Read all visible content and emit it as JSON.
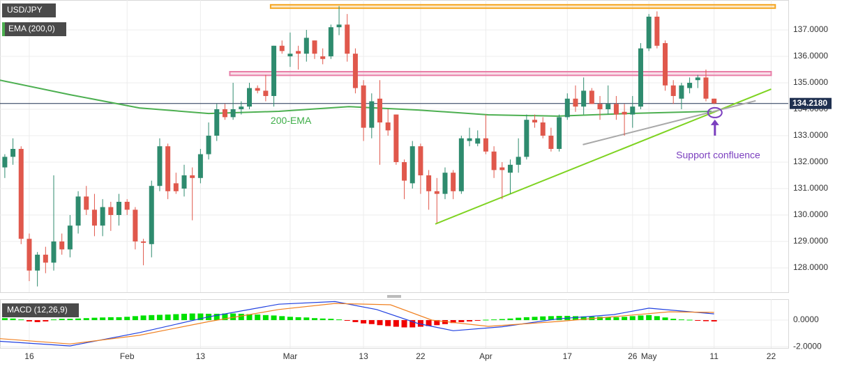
{
  "chart_data": [
    {
      "type": "candlestick",
      "title": "USD/JPY",
      "x": [
        0,
        1,
        2,
        3,
        4,
        5,
        6,
        7,
        8,
        9,
        10,
        11,
        12,
        13,
        14,
        15,
        16,
        17,
        18,
        19,
        20,
        21,
        22,
        23,
        24,
        25,
        26,
        27,
        28,
        29,
        30,
        31,
        32,
        33,
        34,
        35,
        36,
        37,
        38,
        39,
        40,
        41,
        42,
        43,
        44,
        45,
        46,
        47,
        48,
        49,
        50,
        51,
        52,
        53,
        54,
        55,
        56,
        57,
        58,
        59,
        60,
        61,
        62,
        63,
        64,
        65,
        66,
        67,
        68,
        69,
        70,
        71,
        72,
        73,
        74,
        75,
        76,
        77,
        78,
        79,
        80,
        81,
        82,
        83,
        84,
        85,
        86,
        87
      ],
      "open": [
        131.8,
        132.2,
        132.5,
        129.1,
        127.9,
        128.5,
        128.2,
        129.0,
        128.7,
        129.6,
        130.7,
        130.2,
        129.6,
        130.3,
        130.0,
        130.5,
        130.2,
        129.0,
        128.9,
        131.1,
        132.6,
        131.2,
        131.0,
        131.5,
        131.4,
        132.3,
        133.0,
        134.0,
        133.7,
        134.0,
        134.1,
        134.8,
        134.7,
        134.5,
        136.4,
        136.0,
        136.2,
        136.1,
        136.6,
        136.0,
        136.0,
        137.1,
        137.2,
        136.1,
        134.9,
        133.3,
        134.4,
        133.5,
        133.8,
        132.0,
        131.2,
        132.6,
        131.5,
        130.9,
        130.8,
        131.6,
        130.9,
        132.8,
        132.7,
        132.9,
        132.4,
        131.8,
        131.6,
        131.9,
        132.2,
        133.6,
        133.5,
        133.0,
        132.5,
        133.7,
        134.4,
        134.1,
        134.7,
        134.2,
        134.0,
        134.2,
        133.9,
        133.8,
        134.1,
        136.3,
        137.5,
        136.5,
        134.9,
        134.4,
        134.8,
        135.1,
        135.2,
        134.4
      ],
      "high": [
        132.3,
        132.9,
        132.6,
        129.3,
        128.6,
        128.8,
        131.5,
        129.3,
        130.0,
        130.9,
        131.1,
        130.8,
        130.6,
        130.5,
        130.8,
        130.6,
        130.3,
        129.1,
        131.3,
        132.9,
        132.7,
        131.6,
        131.9,
        131.8,
        132.5,
        133.5,
        134.2,
        134.2,
        135.0,
        134.3,
        135.0,
        134.9,
        135.3,
        136.4,
        136.6,
        136.9,
        136.4,
        137.0,
        136.6,
        136.3,
        137.2,
        137.9,
        137.6,
        136.3,
        135.1,
        134.6,
        135.1,
        134.0,
        133.8,
        132.1,
        132.8,
        132.7,
        131.7,
        131.4,
        131.8,
        131.7,
        133.0,
        133.3,
        133.2,
        133.8,
        132.6,
        132.0,
        132.1,
        132.9,
        133.8,
        133.8,
        133.7,
        133.3,
        133.8,
        134.6,
        134.9,
        135.2,
        134.8,
        134.5,
        134.9,
        134.5,
        134.2,
        134.5,
        136.5,
        137.6,
        137.7,
        136.6,
        135.1,
        135.0,
        135.2,
        135.3,
        135.5,
        134.4
      ],
      "low": [
        131.4,
        131.9,
        128.9,
        127.5,
        127.3,
        127.8,
        127.9,
        128.5,
        128.4,
        129.3,
        130.0,
        129.2,
        129.2,
        129.4,
        129.6,
        130.0,
        128.7,
        128.1,
        128.4,
        130.9,
        130.6,
        130.8,
        130.7,
        129.8,
        131.2,
        132.1,
        132.8,
        133.6,
        133.6,
        133.8,
        134.0,
        134.6,
        134.3,
        134.1,
        136.1,
        135.6,
        135.5,
        135.8,
        135.9,
        135.7,
        135.9,
        136.8,
        135.8,
        134.6,
        132.8,
        132.9,
        131.9,
        133.0,
        131.9,
        130.6,
        131.0,
        130.8,
        130.2,
        129.7,
        130.6,
        130.6,
        130.8,
        132.6,
        132.6,
        132.3,
        131.4,
        130.6,
        130.8,
        131.6,
        132.1,
        133.3,
        132.9,
        132.4,
        132.4,
        133.6,
        133.9,
        133.8,
        134.2,
        133.6,
        133.8,
        133.6,
        133.0,
        133.3,
        134.0,
        136.2,
        136.3,
        134.7,
        134.2,
        134.0,
        134.6,
        134.8,
        134.3,
        134.2
      ],
      "close": [
        132.2,
        132.5,
        129.1,
        127.9,
        128.5,
        128.2,
        129.0,
        128.7,
        129.6,
        130.7,
        130.2,
        129.6,
        130.3,
        130.0,
        130.5,
        130.2,
        129.0,
        128.95,
        131.1,
        132.6,
        130.9,
        130.9,
        131.5,
        131.4,
        132.3,
        133.0,
        134.0,
        133.7,
        134.0,
        134.1,
        134.8,
        134.7,
        134.5,
        136.4,
        136.2,
        136.1,
        136.1,
        136.7,
        136.1,
        135.9,
        137.1,
        137.2,
        136.1,
        134.8,
        133.3,
        134.3,
        133.5,
        133.2,
        132.0,
        131.3,
        132.6,
        131.5,
        130.9,
        130.8,
        131.6,
        130.9,
        132.9,
        132.9,
        132.9,
        132.4,
        131.7,
        131.7,
        131.9,
        132.2,
        133.6,
        133.5,
        133.0,
        132.5,
        133.7,
        134.4,
        134.1,
        134.7,
        134.2,
        134.0,
        134.2,
        133.8,
        133.8,
        134.1,
        136.3,
        137.5,
        136.4,
        134.9,
        134.5,
        134.9,
        135.0,
        135.2,
        134.4,
        134.22
      ],
      "up_color": "#2e8b6e",
      "down_color": "#e0584c",
      "series": [
        {
          "name": "EMA (200,0)",
          "color": "#4caf50",
          "x": [
            -0.6,
            8,
            16.5,
            25,
            33.6,
            42.2,
            50.7,
            59.3,
            67.8,
            76.4,
            86.7
          ],
          "values": [
            135.1,
            134.55,
            134.05,
            133.84,
            133.92,
            134.1,
            133.97,
            133.79,
            133.74,
            133.84,
            133.92
          ]
        }
      ],
      "bands": [
        {
          "x": [
            32.6,
            94.5
          ],
          "y": [
            137.82,
            137.95
          ],
          "color": "#f5a623"
        },
        {
          "x": [
            27.6,
            94
          ],
          "y": [
            135.28,
            135.42
          ],
          "color": "#e87fa8"
        }
      ],
      "lines": [
        {
          "x": [
            52.8,
            94
          ],
          "y": [
            129.66,
            134.76
          ],
          "color": "#7ed321"
        },
        {
          "x": [
            70.9,
            92.1
          ],
          "y": [
            132.66,
            134.32
          ],
          "color": "#a8a8a8"
        }
      ],
      "marker": {
        "x": 87.1,
        "y": 133.87,
        "color": "#7b3fbf"
      },
      "annotations": [
        {
          "text": "200-EMA",
          "x": 35.1,
          "y": 133.55,
          "color": "#3fae49"
        },
        {
          "text": "Support confluence",
          "x": 87.5,
          "y": 132.24,
          "color": "#7b3fbf"
        }
      ],
      "current_price": {
        "value": 134.218,
        "label": "134.2180"
      },
      "xlim": [
        -0.59,
        96.1
      ],
      "ylim": [
        127.08,
        138.13
      ],
      "yticks": [
        {
          "value": 128,
          "label": "128.0000"
        },
        {
          "value": 129,
          "label": "129.0000"
        },
        {
          "value": 130,
          "label": "130.0000"
        },
        {
          "value": 131,
          "label": "131.0000"
        },
        {
          "value": 132,
          "label": "132.0000"
        },
        {
          "value": 133,
          "label": "133.0000"
        },
        {
          "value": 134,
          "label": "134.0000"
        },
        {
          "value": 135,
          "label": "135.0000"
        },
        {
          "value": 136,
          "label": "136.0000"
        },
        {
          "value": 137,
          "label": "137.0000"
        }
      ],
      "grid": true
    },
    {
      "type": "macd",
      "title": "MACD (12,26,9)",
      "histogram": [
        0.15,
        0.12,
        0.05,
        -0.1,
        -0.15,
        -0.1,
        0.05,
        0.1,
        0.1,
        0.12,
        0.15,
        0.18,
        0.2,
        0.22,
        0.22,
        0.25,
        0.3,
        0.35,
        0.38,
        0.4,
        0.42,
        0.45,
        0.48,
        0.5,
        0.5,
        0.48,
        0.48,
        0.5,
        0.5,
        0.48,
        0.45,
        0.42,
        0.38,
        0.35,
        0.3,
        0.25,
        0.22,
        0.2,
        0.15,
        0.12,
        0.1,
        0.05,
        -0.05,
        -0.15,
        -0.25,
        -0.3,
        -0.38,
        -0.45,
        -0.5,
        -0.55,
        -0.55,
        -0.5,
        -0.45,
        -0.38,
        -0.3,
        -0.22,
        -0.15,
        -0.1,
        -0.05,
        0.03,
        0.05,
        0.08,
        0.12,
        0.18,
        0.22,
        0.25,
        0.28,
        0.3,
        0.32,
        0.32,
        0.3,
        0.28,
        0.26,
        0.25,
        0.24,
        0.22,
        0.25,
        0.3,
        0.35,
        0.38,
        0.3,
        0.2,
        0.1,
        0.05,
        0.03,
        -0.02,
        -0.08,
        -0.1
      ],
      "up_color": "#00e000",
      "down_color": "#f00000",
      "lines": [
        {
          "color": "#2040e0",
          "x": [
            -0.6,
            8,
            16.5,
            25.1,
            33.6,
            40.5,
            45.6,
            50.7,
            55,
            61,
            67.9,
            74.7,
            79,
            87
          ],
          "values": [
            -1.6,
            -1.95,
            -0.95,
            0.26,
            1.2,
            1.4,
            0.8,
            -0.26,
            -0.8,
            -0.5,
            0.1,
            0.42,
            0.9,
            0.47
          ]
        },
        {
          "color": "#f08020",
          "x": [
            -0.6,
            8,
            16.5,
            25.1,
            33.6,
            40.5,
            47.3,
            52.4,
            59.3,
            67.9,
            74.7,
            81.5,
            87
          ],
          "values": [
            -1.4,
            -1.8,
            -1.15,
            -0.1,
            0.8,
            1.26,
            1.16,
            0,
            -0.47,
            -0.1,
            0.26,
            0.63,
            0.58
          ]
        }
      ],
      "xlim": [
        -0.59,
        96.1
      ],
      "ylim": [
        -2.1,
        1.58
      ],
      "yticks": [
        {
          "value": 0,
          "label": "0.0000"
        },
        {
          "value": -2,
          "label": "-2.0000"
        }
      ],
      "xticks": [
        {
          "value": 3,
          "label": "16"
        },
        {
          "value": 15,
          "label": "Feb"
        },
        {
          "value": 24,
          "label": "13"
        },
        {
          "value": 35,
          "label": "Mar"
        },
        {
          "value": 44,
          "label": "13"
        },
        {
          "value": 51,
          "label": "22"
        },
        {
          "value": 59,
          "label": "Apr"
        },
        {
          "value": 69,
          "label": "17"
        },
        {
          "value": 77,
          "label": "26"
        },
        {
          "value": 79,
          "label": "May"
        },
        {
          "value": 87,
          "label": "11"
        },
        {
          "value": 94,
          "label": "22"
        }
      ],
      "grid": true
    }
  ]
}
